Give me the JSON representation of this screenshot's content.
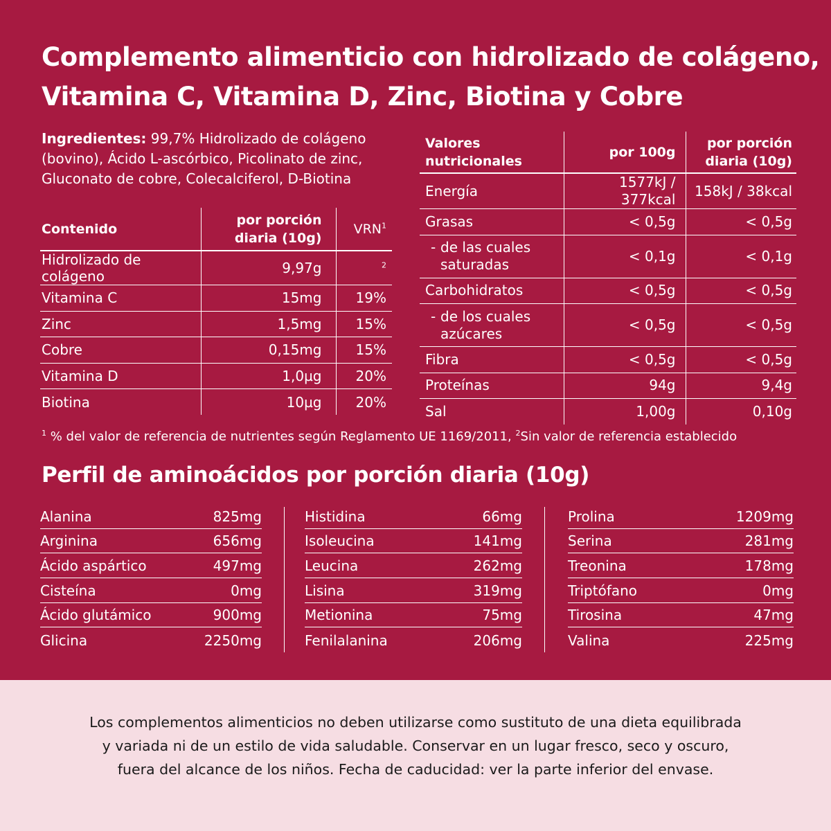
{
  "title": {
    "line1": "Complemento alimenticio con hidrolizado de colágeno,",
    "line2": "Vitamina C, Vitamina D, Zinc, Biotina y Cobre"
  },
  "ingredients": {
    "label": "Ingredientes:",
    "text": " 99,7% Hidrolizado de colágeno (bovino), Ácido L-ascórbico, Picolinato de zinc, Gluconato de cobre, Colecalciferol, D-Biotina"
  },
  "contenido": {
    "headers": {
      "name": "Contenido",
      "portion": "por porción diaria (10g)",
      "vrn": "VRN",
      "vrn_sup": "1"
    },
    "rows": [
      {
        "name": "Hidrolizado de colágeno",
        "amount": "9,97g",
        "vrn": "",
        "vrn_sup": "2"
      },
      {
        "name": "Vitamina C",
        "amount": "15mg",
        "vrn": "19%",
        "vrn_sup": ""
      },
      {
        "name": "Zinc",
        "amount": "1,5mg",
        "vrn": "15%",
        "vrn_sup": ""
      },
      {
        "name": "Cobre",
        "amount": "0,15mg",
        "vrn": "15%",
        "vrn_sup": ""
      },
      {
        "name": "Vitamina D",
        "amount": "1,0µg",
        "vrn": "20%",
        "vrn_sup": ""
      },
      {
        "name": "Biotina",
        "amount": "10µg",
        "vrn": "20%",
        "vrn_sup": ""
      }
    ]
  },
  "nutricion": {
    "headers": {
      "name": "Valores nutricionales",
      "per100": "por 100g",
      "portion": "por porción diaria (10g)"
    },
    "rows": [
      {
        "name": "Energía",
        "per100": "1577kJ / 377kcal",
        "portion": "158kJ / 38kcal"
      },
      {
        "name": "Grasas",
        "per100": "< 0,5g",
        "portion": "< 0,5g"
      },
      {
        "dash": "-",
        "name_l1": "de las cuales",
        "name_l2": "saturadas",
        "per100": "< 0,1g",
        "portion": "< 0,1g"
      },
      {
        "name": "Carbohidratos",
        "per100": "< 0,5g",
        "portion": "< 0,5g"
      },
      {
        "dash": "-",
        "name_l1": "de los cuales",
        "name_l2": "azúcares",
        "per100": "< 0,5g",
        "portion": "< 0,5g"
      },
      {
        "name": "Fibra",
        "per100": "< 0,5g",
        "portion": "< 0,5g"
      },
      {
        "name": "Proteínas",
        "per100": "94g",
        "portion": "9,4g"
      },
      {
        "name": "Sal",
        "per100": "1,00g",
        "portion": "0,10g"
      }
    ]
  },
  "footnote": {
    "sup1": "1",
    "text1": " % del valor de referencia de nutrientes según Reglamento UE 1169/2011,",
    "sup2": "2",
    "text2": "Sin valor de referencia establecido"
  },
  "amino": {
    "title": "Perfil de aminoácidos por porción diaria (10g)",
    "col1": [
      {
        "name": "Alanina",
        "value": "825mg"
      },
      {
        "name": "Arginina",
        "value": "656mg"
      },
      {
        "name": "Ácido aspártico",
        "value": "497mg"
      },
      {
        "name": "Cisteína",
        "value": "0mg"
      },
      {
        "name": "Ácido glutámico",
        "value": "900mg"
      },
      {
        "name": "Glicina",
        "value": "2250mg"
      }
    ],
    "col2": [
      {
        "name": "Histidina",
        "value": "66mg"
      },
      {
        "name": "Isoleucina",
        "value": "141mg"
      },
      {
        "name": "Leucina",
        "value": "262mg"
      },
      {
        "name": "Lisina",
        "value": "319mg"
      },
      {
        "name": "Metionina",
        "value": "75mg"
      },
      {
        "name": "Fenilalanina",
        "value": "206mg"
      }
    ],
    "col3": [
      {
        "name": "Prolina",
        "value": "1209mg"
      },
      {
        "name": "Serina",
        "value": "281mg"
      },
      {
        "name": "Treonina",
        "value": "178mg"
      },
      {
        "name": "Triptófano",
        "value": "0mg"
      },
      {
        "name": "Tirosina",
        "value": "47mg"
      },
      {
        "name": "Valina",
        "value": "225mg"
      }
    ]
  },
  "disclaimer": {
    "line1": "Los complementos alimenticios no deben utilizarse como sustituto de una dieta equilibrada",
    "line2": "y variada ni de un estilo de vida saludable. Conservar en un lugar fresco, seco y oscuro,",
    "line3": "fuera del alcance de los niños. Fecha de caducidad: ver la parte inferior del envase."
  },
  "colors": {
    "panel": "#a71a41",
    "footer": "#f6dde3",
    "text_light": "#ffffff",
    "text_dark": "#1a1a1a"
  }
}
